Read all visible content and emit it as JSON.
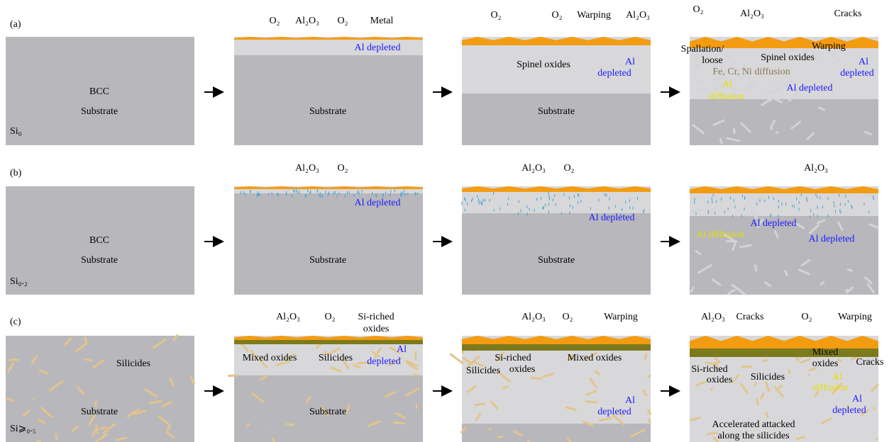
{
  "rows": [
    {
      "label": "(a)",
      "panels": [
        {
          "texts": [
            "BCC",
            "Substrate",
            "Si₀"
          ]
        },
        {
          "texts": [
            "O₂",
            "Al₂O₃",
            "O₂",
            "Metal",
            "Al depleted",
            "Substrate"
          ]
        },
        {
          "texts": [
            "O₂",
            "O₂",
            "Warping",
            "Al₂O₃",
            "Spinel oxides",
            "Al",
            "depleted",
            "Substrate"
          ]
        },
        {
          "texts": [
            "O₂",
            "Al₂O₃",
            "Cracks",
            "Warping",
            "Spallation/",
            "loose",
            "Spinel oxides",
            "Fe, Cr, Ni diffusion",
            "Al",
            "depleted",
            "Al depleted",
            "Al",
            "diffusion"
          ]
        }
      ]
    },
    {
      "label": "(b)",
      "panels": [
        {
          "texts": [
            "BCC",
            "Substrate",
            "Si₀.₂"
          ]
        },
        {
          "texts": [
            "Al₂O₃",
            "O₂",
            "Al depleted",
            "Substrate"
          ]
        },
        {
          "texts": [
            "Al₂O₃",
            "O₂",
            "Al depleted",
            "Substrate"
          ]
        },
        {
          "texts": [
            "Al₂O₃",
            "Al diffusion",
            "Al depleted",
            "Al depleted"
          ]
        }
      ]
    },
    {
      "label": "(c)",
      "panels": [
        {
          "texts": [
            "Silicides",
            "Substrate",
            "Si⩾₀.₅"
          ]
        },
        {
          "texts": [
            "Al₂O₃",
            "O₂",
            "Si-riched",
            "oxides",
            "Mixed oxides",
            "Silicides",
            "Al",
            "depleted",
            "Substrate"
          ]
        },
        {
          "texts": [
            "Al₂O₃",
            "O₂",
            "Warping",
            "Si-riched",
            "oxides",
            "Mixed oxides",
            "Silicides",
            "Al",
            "depleted"
          ]
        },
        {
          "texts": [
            "Al₂O₃",
            "Cracks",
            "O₂",
            "Warping",
            "Si-riched",
            "oxides",
            "Mixed",
            "oxides",
            "Cracks",
            "Silicides",
            "Al",
            "diffusion",
            "Al",
            "depleted",
            "Accelerated attacked",
            "along the silicides"
          ]
        }
      ]
    }
  ]
}
